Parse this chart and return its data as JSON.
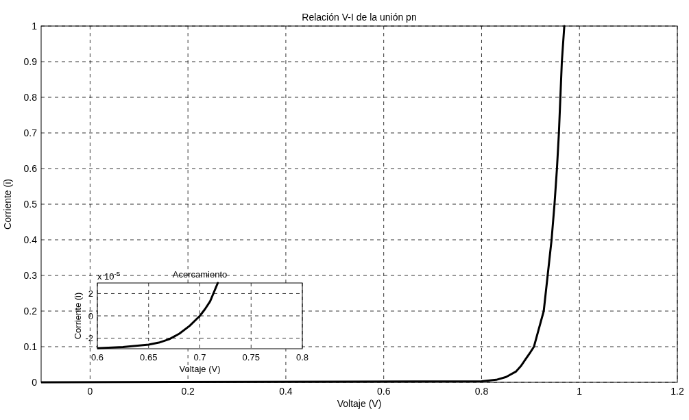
{
  "chart_data": [
    {
      "type": "line",
      "title": "Relación V-I de la unión pn",
      "xlabel": "Voltaje (V)",
      "ylabel": "Corriente (i)",
      "xlim": [
        -0.1,
        1.2
      ],
      "xticks": [
        0,
        0.2,
        0.4,
        0.6,
        0.8,
        1,
        1.2
      ],
      "ylim": [
        0,
        1
      ],
      "yticks": [
        0,
        0.1,
        0.2,
        0.3,
        0.4,
        0.5,
        0.6,
        0.7,
        0.8,
        0.9,
        1
      ],
      "grid": true,
      "series": [
        {
          "color": "#000000",
          "x": [
            -0.1,
            0.8,
            0.83,
            0.85,
            0.87,
            0.88,
            0.89,
            0.9,
            0.907,
            0.915,
            0.927,
            0.935,
            0.943,
            0.949,
            0.954,
            0.958,
            0.961,
            0.964,
            0.969
          ],
          "values": [
            0,
            0.003,
            0.007,
            0.015,
            0.03,
            0.045,
            0.065,
            0.085,
            0.1,
            0.14,
            0.2,
            0.3,
            0.4,
            0.5,
            0.6,
            0.7,
            0.8,
            0.9,
            1
          ]
        }
      ]
    },
    {
      "type": "line",
      "title": "Acercamiento",
      "xlabel": "Voltaje (V)",
      "ylabel": "Corriente (i)",
      "xlim": [
        0.6,
        0.8
      ],
      "xticks": [
        0.6,
        0.65,
        0.7,
        0.75,
        0.8
      ],
      "ylim": [
        -2.95,
        2.95
      ],
      "yticks": [
        -2,
        0,
        2
      ],
      "grid": true,
      "annotations": [
        "x 10$^{-5}$"
      ],
      "series": [
        {
          "color": "#000000",
          "x": [
            0.6,
            0.625,
            0.65,
            0.66,
            0.67,
            0.675,
            0.68,
            0.69,
            0.7,
            0.705,
            0.71,
            0.7175
          ],
          "values": [
            -2.9,
            -2.8,
            -2.58,
            -2.4,
            -2.1,
            -1.85,
            -1.6,
            -0.9,
            0,
            0.6,
            1.3,
            2.95
          ]
        }
      ]
    }
  ]
}
